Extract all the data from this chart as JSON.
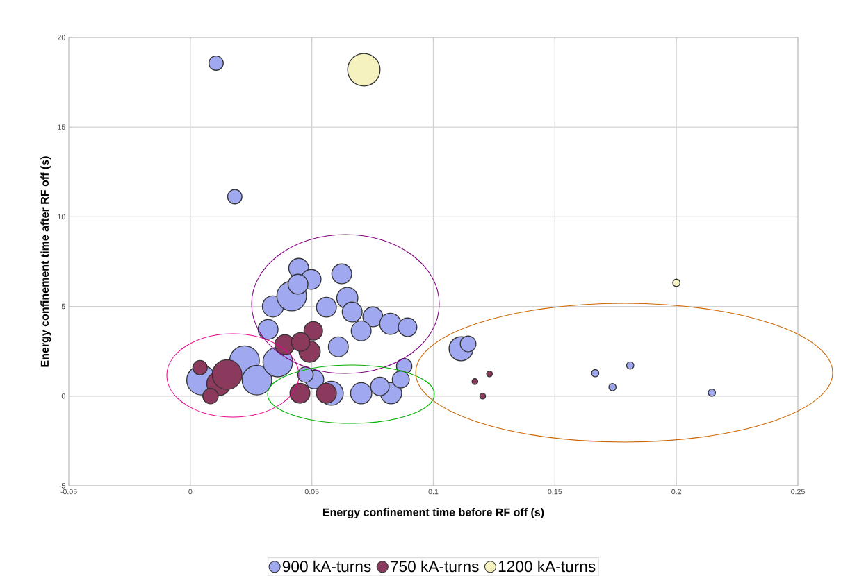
{
  "chart_data": {
    "type": "bubble",
    "xlabel": "Energy confinement time before RF off (s)",
    "ylabel": "Energy confinement time after RF off (s)",
    "xlim": [
      -0.05,
      0.25
    ],
    "xticks": [
      -0.05,
      0,
      0.05,
      0.1,
      0.15,
      0.2,
      0.25
    ],
    "ylim": [
      -5,
      20
    ],
    "yticks": [
      -5,
      0,
      5,
      10,
      15,
      20
    ],
    "grid": true,
    "legend": "bottom",
    "series": [
      {
        "name": "900 kA-turns",
        "color": "#a0a8f0",
        "x": [
          0.0106,
          0.0183,
          0.0046,
          0.0223,
          0.0274,
          0.036,
          0.034,
          0.032,
          0.0417,
          0.0446,
          0.0497,
          0.0623,
          0.056,
          0.0646,
          0.0666,
          0.0751,
          0.0823,
          0.0894,
          0.0703,
          0.0609,
          0.0443,
          0.0703,
          0.0826,
          0.088,
          0.0866,
          0.058,
          0.0511,
          0.078,
          0.0474,
          0.1114,
          0.1143,
          0.1666,
          0.1737,
          0.181,
          0.2146
        ],
        "values": [
          18.57,
          11.12,
          0.89,
          1.98,
          0.89,
          1.9,
          5.0,
          3.72,
          5.58,
          7.13,
          6.51,
          6.82,
          4.96,
          5.47,
          4.69,
          4.42,
          4.03,
          3.84,
          3.64,
          2.75,
          6.24,
          0.16,
          0.16,
          1.67,
          0.93,
          0.16,
          0.93,
          0.54,
          1.2,
          2.64,
          2.91,
          1.28,
          0.5,
          1.71,
          0.19
        ],
        "sizes": [
          0.21,
          0.21,
          0.84,
          0.84,
          0.84,
          0.84,
          0.44,
          0.39,
          0.84,
          0.39,
          0.39,
          0.39,
          0.39,
          0.44,
          0.39,
          0.39,
          0.44,
          0.34,
          0.39,
          0.39,
          0.39,
          0.44,
          0.44,
          0.24,
          0.29,
          0.56,
          0.34,
          0.34,
          0.24,
          0.56,
          0.25,
          0.06,
          0.06,
          0.06,
          0.06
        ]
      },
      {
        "name": "750 kA-turns",
        "color": "#8b3a5e",
        "x": [
          0.004,
          0.0117,
          0.0083,
          0.0151,
          0.0389,
          0.0506,
          0.0491,
          0.0454,
          0.0451,
          0.056,
          0.1171,
          0.1231,
          0.1203
        ],
        "values": [
          1.59,
          0.7,
          0.0,
          1.2,
          2.87,
          3.64,
          2.48,
          3.02,
          0.16,
          0.16,
          0.81,
          1.24,
          0.0
        ],
        "sizes": [
          0.21,
          0.56,
          0.24,
          0.84,
          0.39,
          0.34,
          0.44,
          0.34,
          0.39,
          0.39,
          0.04,
          0.04,
          0.04
        ]
      },
      {
        "name": "1200 kA-turns",
        "color": "#f5f2c0",
        "x": [
          0.0714,
          0.2
        ],
        "values": [
          18.2,
          6.32
        ],
        "sizes": [
          1,
          0.06
        ]
      }
    ]
  }
}
